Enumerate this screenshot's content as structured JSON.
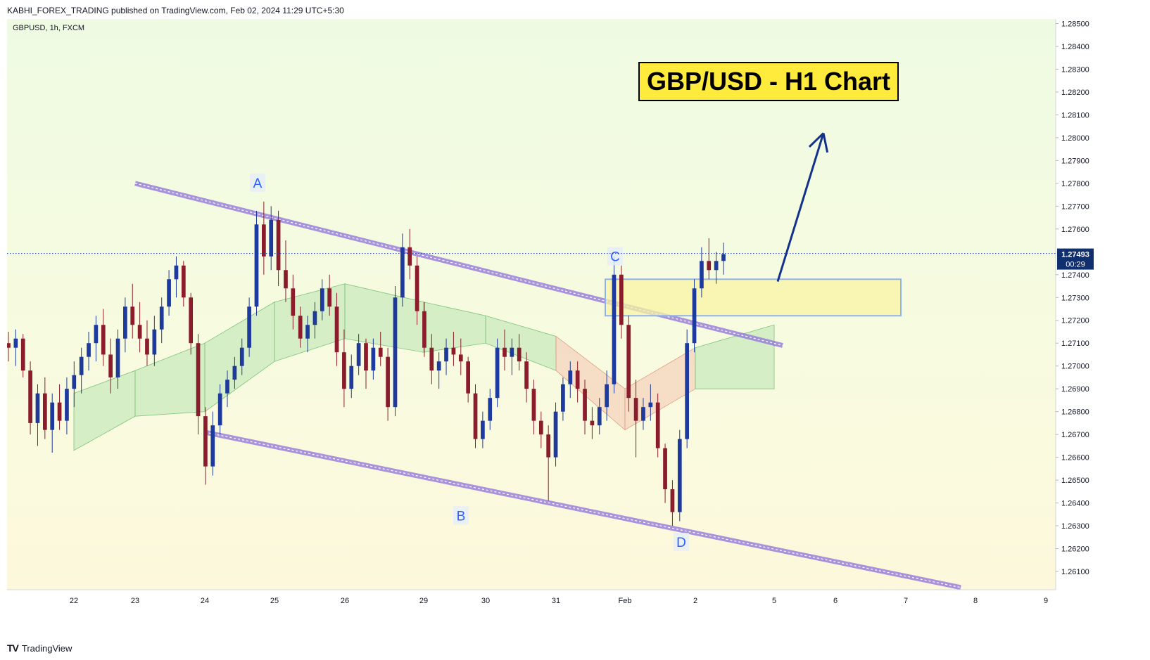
{
  "header": {
    "publisher_line": "KABHI_FOREX_TRADING published on TradingView.com, Feb 02, 2024 11:29 UTC+5:30"
  },
  "footer": {
    "logo_glyph": "TV",
    "brand": "TradingView"
  },
  "colors": {
    "bull": "#1e3a9c",
    "bear": "#8a1c2c",
    "channel": "#8d70d9",
    "arrow": "#13318d",
    "point_label": "#2962ff",
    "price_badge": "#0f2f6e",
    "zone_fill": "#f8f4a3",
    "zone_border": "#8fb3f0",
    "title_bg": "#ffeb3b",
    "cloud_green": "#b9e3b0",
    "cloud_red": "#f3c4b0"
  },
  "chart_data": {
    "type": "candlestick",
    "symbol_info": "GBPUSD, 1h, FXCM",
    "title": "GBP/USD - H1 Chart",
    "x_ticks": [
      "22",
      "23",
      "24",
      "25",
      "26",
      "29",
      "30",
      "31",
      "Feb",
      "2",
      "5",
      "6",
      "7",
      "8",
      "9"
    ],
    "y_ticks": [
      "1.28500",
      "1.28400",
      "1.28300",
      "1.28200",
      "1.28100",
      "1.28000",
      "1.27900",
      "1.27800",
      "1.27700",
      "1.27600",
      "1.27400",
      "1.27300",
      "1.27200",
      "1.27100",
      "1.27000",
      "1.26900",
      "1.26800",
      "1.26700",
      "1.26600",
      "1.26500",
      "1.26400",
      "1.26300",
      "1.26200",
      "1.26100"
    ],
    "ylim": [
      1.2602,
      1.2852
    ],
    "current_price": {
      "value": "1.27493",
      "countdown": "00:29"
    },
    "points": [
      {
        "label": "A",
        "date": "Jan 24",
        "price": 1.2772
      },
      {
        "label": "B",
        "date": "Jan 30",
        "price": 1.2641
      },
      {
        "label": "C",
        "date": "Feb 1",
        "price": 1.2749
      },
      {
        "label": "D",
        "date": "Feb 1",
        "price": 1.263
      }
    ],
    "channel": {
      "upper": [
        {
          "date": "Jan 23",
          "price": 1.278
        },
        {
          "date": "Feb 5",
          "price": 1.2709
        }
      ],
      "lower": [
        {
          "date": "Jan 24",
          "price": 1.2671
        },
        {
          "date": "Feb 7",
          "price": 1.2603
        }
      ]
    },
    "zone": {
      "date_from": "Jan 31",
      "date_to": "Feb 5",
      "price_top": 1.2738,
      "price_bottom": 1.2722
    },
    "arrow": {
      "from": {
        "date": "Feb 2",
        "price": 1.2737
      },
      "to": {
        "date": "Feb 5",
        "price": 1.2802
      }
    },
    "candles_ohlc": [
      [
        1.271,
        1.2715,
        1.2702,
        1.2708
      ],
      [
        1.2708,
        1.2716,
        1.27,
        1.2712
      ],
      [
        1.2712,
        1.2714,
        1.2695,
        1.2698
      ],
      [
        1.2698,
        1.2702,
        1.267,
        1.2675
      ],
      [
        1.2675,
        1.2692,
        1.2665,
        1.2688
      ],
      [
        1.2688,
        1.2695,
        1.2668,
        1.2672
      ],
      [
        1.2672,
        1.2688,
        1.2662,
        1.2684
      ],
      [
        1.2684,
        1.2692,
        1.2672,
        1.2676
      ],
      [
        1.2676,
        1.2695,
        1.267,
        1.269
      ],
      [
        1.269,
        1.2702,
        1.2682,
        1.2696
      ],
      [
        1.2696,
        1.2708,
        1.2688,
        1.2704
      ],
      [
        1.2704,
        1.2715,
        1.2698,
        1.271
      ],
      [
        1.271,
        1.2722,
        1.2702,
        1.2718
      ],
      [
        1.2718,
        1.2725,
        1.27,
        1.2705
      ],
      [
        1.2705,
        1.2712,
        1.2688,
        1.2695
      ],
      [
        1.2695,
        1.2716,
        1.269,
        1.2712
      ],
      [
        1.2712,
        1.273,
        1.2706,
        1.2726
      ],
      [
        1.2726,
        1.2736,
        1.2712,
        1.2718
      ],
      [
        1.2718,
        1.2728,
        1.2706,
        1.2712
      ],
      [
        1.2712,
        1.272,
        1.27,
        1.2705
      ],
      [
        1.2705,
        1.2722,
        1.27,
        1.2716
      ],
      [
        1.2716,
        1.273,
        1.271,
        1.2726
      ],
      [
        1.2726,
        1.2742,
        1.2722,
        1.2738
      ],
      [
        1.2738,
        1.2748,
        1.273,
        1.2744
      ],
      [
        1.2744,
        1.2746,
        1.2726,
        1.273
      ],
      [
        1.273,
        1.2732,
        1.2705,
        1.271
      ],
      [
        1.271,
        1.2714,
        1.267,
        1.2678
      ],
      [
        1.2678,
        1.2682,
        1.2648,
        1.2656
      ],
      [
        1.2656,
        1.268,
        1.2652,
        1.2674
      ],
      [
        1.2674,
        1.2692,
        1.267,
        1.2688
      ],
      [
        1.2688,
        1.2698,
        1.2682,
        1.2694
      ],
      [
        1.2694,
        1.2704,
        1.269,
        1.27
      ],
      [
        1.27,
        1.2712,
        1.2696,
        1.2708
      ],
      [
        1.2708,
        1.273,
        1.2704,
        1.2726
      ],
      [
        1.2726,
        1.2768,
        1.2722,
        1.2762
      ],
      [
        1.2762,
        1.2772,
        1.274,
        1.2748
      ],
      [
        1.2748,
        1.277,
        1.2742,
        1.2764
      ],
      [
        1.2764,
        1.2768,
        1.2735,
        1.2742
      ],
      [
        1.2742,
        1.2755,
        1.2728,
        1.2734
      ],
      [
        1.2734,
        1.274,
        1.2716,
        1.2722
      ],
      [
        1.2722,
        1.2726,
        1.2708,
        1.2712
      ],
      [
        1.2712,
        1.2722,
        1.2706,
        1.2718
      ],
      [
        1.2718,
        1.2728,
        1.2712,
        1.2724
      ],
      [
        1.2724,
        1.2738,
        1.272,
        1.2734
      ],
      [
        1.2734,
        1.274,
        1.2722,
        1.2726
      ],
      [
        1.2726,
        1.2732,
        1.27,
        1.2706
      ],
      [
        1.2706,
        1.2716,
        1.2682,
        1.269
      ],
      [
        1.269,
        1.2705,
        1.2686,
        1.27
      ],
      [
        1.27,
        1.2714,
        1.2696,
        1.271
      ],
      [
        1.271,
        1.2712,
        1.269,
        1.2698
      ],
      [
        1.2698,
        1.2712,
        1.2694,
        1.2708
      ],
      [
        1.2708,
        1.2715,
        1.27,
        1.2704
      ],
      [
        1.2704,
        1.2708,
        1.2676,
        1.2682
      ],
      [
        1.2682,
        1.2735,
        1.2678,
        1.273
      ],
      [
        1.273,
        1.2758,
        1.2726,
        1.2752
      ],
      [
        1.2752,
        1.276,
        1.2738,
        1.2744
      ],
      [
        1.2744,
        1.2748,
        1.2718,
        1.2724
      ],
      [
        1.2724,
        1.2728,
        1.2704,
        1.2708
      ],
      [
        1.2708,
        1.2714,
        1.2692,
        1.2698
      ],
      [
        1.2698,
        1.2706,
        1.269,
        1.2702
      ],
      [
        1.2702,
        1.2712,
        1.2696,
        1.2708
      ],
      [
        1.2708,
        1.2715,
        1.27,
        1.2705
      ],
      [
        1.2705,
        1.2712,
        1.2696,
        1.2702
      ],
      [
        1.2702,
        1.2704,
        1.2684,
        1.2688
      ],
      [
        1.2688,
        1.2692,
        1.2664,
        1.2668
      ],
      [
        1.2668,
        1.268,
        1.2664,
        1.2676
      ],
      [
        1.2676,
        1.269,
        1.2672,
        1.2686
      ],
      [
        1.2686,
        1.2712,
        1.2682,
        1.2708
      ],
      [
        1.2708,
        1.2716,
        1.2698,
        1.2704
      ],
      [
        1.2704,
        1.2712,
        1.2696,
        1.2708
      ],
      [
        1.2708,
        1.2714,
        1.2698,
        1.2702
      ],
      [
        1.2702,
        1.2706,
        1.2684,
        1.269
      ],
      [
        1.269,
        1.2694,
        1.267,
        1.2676
      ],
      [
        1.2676,
        1.268,
        1.2664,
        1.267
      ],
      [
        1.267,
        1.2674,
        1.2641,
        1.266
      ],
      [
        1.266,
        1.2684,
        1.2656,
        1.268
      ],
      [
        1.268,
        1.2695,
        1.2676,
        1.2692
      ],
      [
        1.2692,
        1.2702,
        1.2686,
        1.2698
      ],
      [
        1.2698,
        1.2702,
        1.2684,
        1.269
      ],
      [
        1.269,
        1.2694,
        1.267,
        1.2676
      ],
      [
        1.2676,
        1.2682,
        1.2668,
        1.2674
      ],
      [
        1.2674,
        1.2686,
        1.267,
        1.2682
      ],
      [
        1.2682,
        1.2698,
        1.2676,
        1.2692
      ],
      [
        1.2692,
        1.2748,
        1.2688,
        1.274
      ],
      [
        1.274,
        1.2744,
        1.2712,
        1.2718
      ],
      [
        1.2718,
        1.2722,
        1.268,
        1.2686
      ],
      [
        1.2686,
        1.2694,
        1.266,
        1.2676
      ],
      [
        1.2676,
        1.2686,
        1.2672,
        1.2682
      ],
      [
        1.2682,
        1.2692,
        1.2676,
        1.2684
      ],
      [
        1.2684,
        1.2688,
        1.266,
        1.2664
      ],
      [
        1.2664,
        1.2666,
        1.264,
        1.2646
      ],
      [
        1.2646,
        1.265,
        1.263,
        1.2636
      ],
      [
        1.2636,
        1.2672,
        1.2632,
        1.2668
      ],
      [
        1.2668,
        1.2716,
        1.2664,
        1.271
      ],
      [
        1.271,
        1.2738,
        1.2706,
        1.2734
      ],
      [
        1.2734,
        1.2752,
        1.273,
        1.2746
      ],
      [
        1.2746,
        1.2756,
        1.2738,
        1.2742
      ],
      [
        1.2742,
        1.275,
        1.2736,
        1.2746
      ],
      [
        1.2746,
        1.2754,
        1.274,
        1.2749
      ]
    ],
    "cloud": [
      {
        "date": "Jan 22",
        "top": 1.2688,
        "bottom": 1.2663
      },
      {
        "date": "Jan 23",
        "top": 1.2698,
        "bottom": 1.2678
      },
      {
        "date": "Jan 24",
        "top": 1.271,
        "bottom": 1.268
      },
      {
        "date": "Jan 25",
        "top": 1.2728,
        "bottom": 1.2702
      },
      {
        "date": "Jan 26",
        "top": 1.2736,
        "bottom": 1.2712
      },
      {
        "date": "Jan 29",
        "top": 1.2728,
        "bottom": 1.2706
      },
      {
        "date": "Jan 30",
        "top": 1.2722,
        "bottom": 1.271
      },
      {
        "date": "Jan 31",
        "top": 1.2713,
        "bottom": 1.2698
      },
      {
        "date": "Feb 1",
        "top": 1.269,
        "bottom": 1.2672
      },
      {
        "date": "Feb 2",
        "top": 1.2708,
        "bottom": 1.269
      },
      {
        "date": "Feb 5",
        "top": 1.2718,
        "bottom": 1.269
      }
    ]
  }
}
